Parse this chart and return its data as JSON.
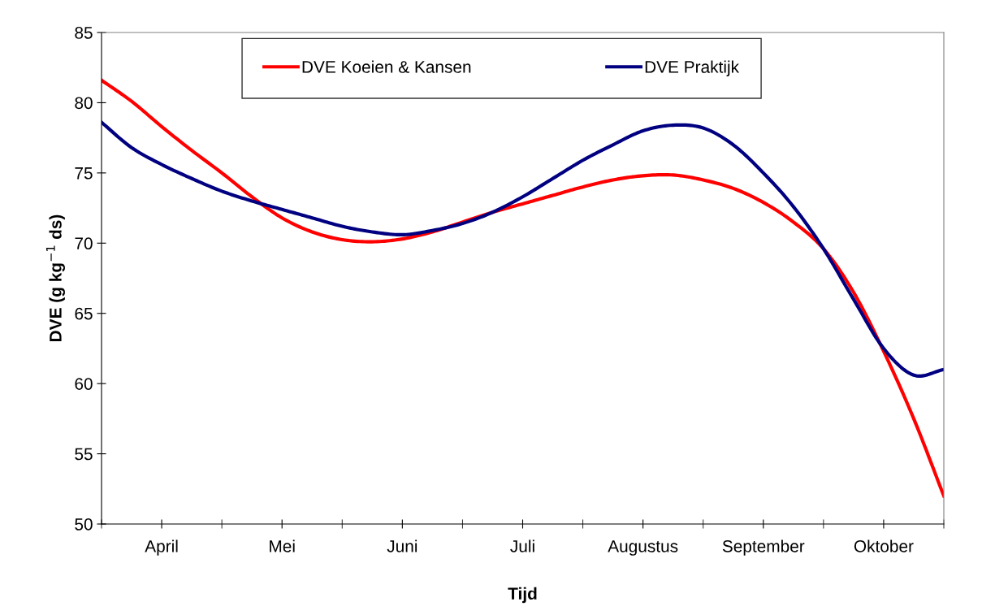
{
  "chart_data": {
    "type": "line",
    "xlabel": "Tijd",
    "ylabel": "DVE (g kg$^{−1}$ ds)",
    "categories": [
      null,
      null,
      "April",
      null,
      null,
      null,
      "Mei",
      null,
      null,
      null,
      "Juni",
      null,
      null,
      null,
      "Juli",
      null,
      null,
      null,
      "Augustus",
      null,
      null,
      null,
      "September",
      null,
      null,
      null,
      "Oktober",
      null,
      null
    ],
    "ylim": [
      50,
      85
    ],
    "yticks": [
      50,
      55,
      60,
      65,
      70,
      75,
      80,
      85
    ],
    "grid": false,
    "legend": "top",
    "marker": "none",
    "line_style": "solid",
    "series": [
      {
        "name": "DVE Koeien & Kansen",
        "color": "#ff0000",
        "values": [
          81.6,
          80.1,
          78.3,
          76.6,
          75.0,
          73.3,
          71.8,
          70.8,
          70.25,
          70.1,
          70.3,
          70.8,
          71.5,
          72.2,
          72.8,
          73.4,
          74.0,
          74.5,
          74.8,
          74.85,
          74.5,
          73.9,
          72.9,
          71.5,
          69.6,
          66.5,
          62.3,
          57.5,
          52.0
        ]
      },
      {
        "name": "DVE Praktijk",
        "color": "#000080",
        "values": [
          78.6,
          76.8,
          75.6,
          74.6,
          73.7,
          73.0,
          72.4,
          71.8,
          71.2,
          70.8,
          70.6,
          70.9,
          71.4,
          72.2,
          73.3,
          74.6,
          75.9,
          77.0,
          78.0,
          78.4,
          78.2,
          77.0,
          75.0,
          72.6,
          69.6,
          66.0,
          62.5,
          60.6,
          61.0
        ]
      }
    ]
  }
}
